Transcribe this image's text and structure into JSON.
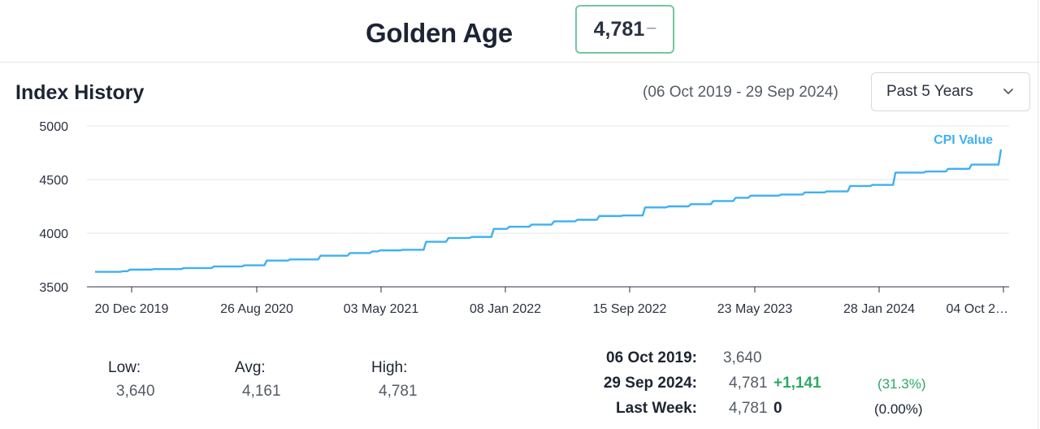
{
  "header": {
    "title": "Golden Age",
    "current_value": "4,781",
    "change_marker": "–"
  },
  "section": {
    "title": "Index History",
    "range": "(06 Oct 2019 - 29 Sep 2024)",
    "period_select": "Past 5 Years"
  },
  "chart_data": {
    "type": "line",
    "title": "",
    "xlabel": "",
    "ylabel": "",
    "ylim": [
      3500,
      5000
    ],
    "y_ticks": [
      3500,
      4000,
      4500,
      5000
    ],
    "x_tick_labels": [
      "20 Dec 2019",
      "26 Aug 2020",
      "03 May 2021",
      "08 Jan 2022",
      "15 Sep 2022",
      "23 May 2023",
      "28 Jan 2024",
      "04 Oct 2…"
    ],
    "grid": true,
    "legend": "top-right",
    "series": [
      {
        "name": "CPI Value",
        "color": "#3fb0f2",
        "x": [
          "2019-10-06",
          "2019-12-01",
          "2019-12-15",
          "2020-02-01",
          "2020-04-01",
          "2020-06-01",
          "2020-08-01",
          "2020-09-15",
          "2020-11-01",
          "2021-01-01",
          "2021-03-01",
          "2021-04-15",
          "2021-05-01",
          "2021-06-15",
          "2021-08-01",
          "2021-09-15",
          "2021-11-01",
          "2021-12-15",
          "2022-01-15",
          "2022-03-01",
          "2022-04-15",
          "2022-06-01",
          "2022-07-15",
          "2022-09-01",
          "2022-10-15",
          "2022-12-01",
          "2023-01-15",
          "2023-03-01",
          "2023-04-15",
          "2023-05-15",
          "2023-07-15",
          "2023-09-01",
          "2023-10-15",
          "2023-12-01",
          "2024-01-15",
          "2024-03-01",
          "2024-05-01",
          "2024-06-15",
          "2024-08-01",
          "2024-09-29"
        ],
        "values": [
          3640,
          3645,
          3660,
          3665,
          3675,
          3690,
          3700,
          3745,
          3755,
          3790,
          3815,
          3830,
          3840,
          3845,
          3920,
          3955,
          3965,
          4040,
          4060,
          4080,
          4110,
          4125,
          4160,
          4165,
          4240,
          4250,
          4270,
          4300,
          4330,
          4350,
          4360,
          4380,
          4390,
          4440,
          4450,
          4565,
          4575,
          4600,
          4640,
          4781
        ]
      }
    ]
  },
  "stats": {
    "low": {
      "label": "Low:",
      "value": "3,640"
    },
    "avg": {
      "label": "Avg:",
      "value": "4,161"
    },
    "high": {
      "label": "High:",
      "value": "4,781"
    }
  },
  "comparison": [
    {
      "label": "06 Oct 2019:",
      "value": "3,640",
      "change": "",
      "pct": ""
    },
    {
      "label": "29 Sep 2024:",
      "value": "4,781",
      "change": "+1,141",
      "pct": "(31.3%)"
    },
    {
      "label": "Last Week:",
      "value": "4,781",
      "change": "0",
      "pct": "(0.00%)"
    }
  ],
  "colors": {
    "positive": "#2ea866",
    "neutral": "#1d2433",
    "line": "#3fb0f2"
  }
}
